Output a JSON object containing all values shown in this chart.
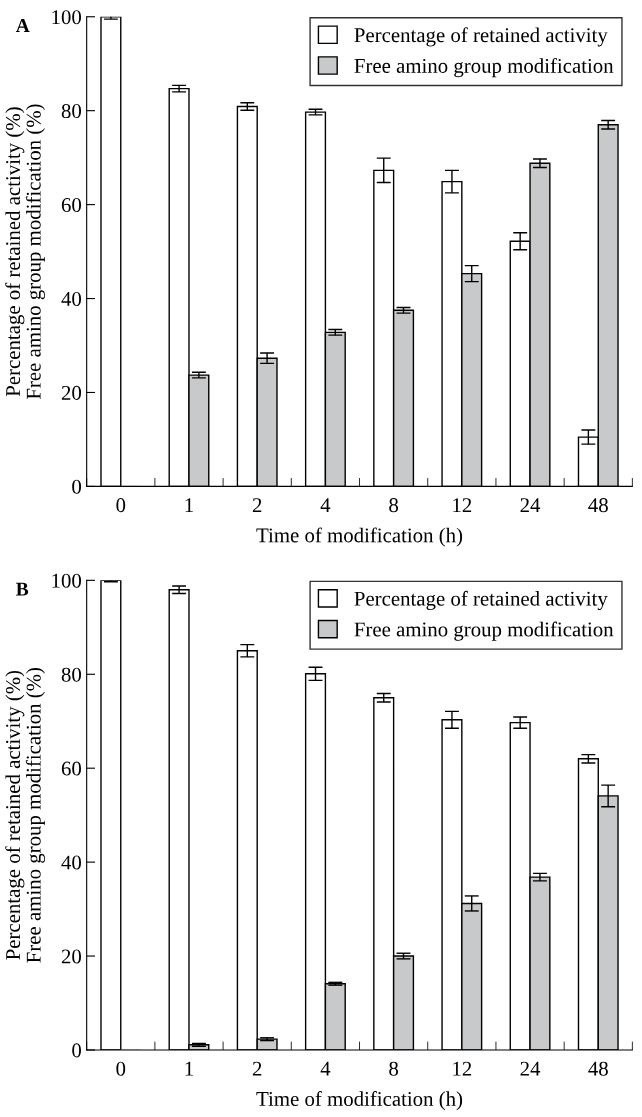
{
  "chart_data": [
    {
      "type": "bar",
      "title": "A",
      "xlabel": "Time of modification (h)",
      "ylabel": "Percentage of retained activity (%)\nFree amino group modification (%)",
      "categories": [
        "0",
        "1",
        "2",
        "4",
        "8",
        "12",
        "24",
        "48"
      ],
      "series": [
        {
          "name": "Percentage of retained activity",
          "color": "#ffffff",
          "values": [
            100,
            84.7,
            80.9,
            79.7,
            67.3,
            64.9,
            52.2,
            10.5
          ],
          "errors": [
            0.5,
            0.7,
            0.8,
            0.6,
            2.6,
            2.4,
            1.8,
            1.5
          ]
        },
        {
          "name": "Free amino group modification",
          "color": "#c8c9cb",
          "values": [
            0,
            23.7,
            27.3,
            32.8,
            37.5,
            45.3,
            68.8,
            77.0
          ],
          "errors": [
            null,
            0.6,
            1.1,
            0.6,
            0.6,
            1.7,
            0.9,
            0.9
          ]
        }
      ],
      "ylim": [
        0,
        100
      ],
      "yticks": [
        0,
        20,
        40,
        60,
        80,
        100
      ],
      "legend": "top right",
      "grid": false
    },
    {
      "type": "bar",
      "title": "B",
      "xlabel": "Time of modification (h)",
      "ylabel": "Percentage of retained activity (%)\nFree amino group modification (%)",
      "categories": [
        "0",
        "1",
        "2",
        "4",
        "8",
        "12",
        "24",
        "48"
      ],
      "series": [
        {
          "name": "Percentage of retained activity",
          "color": "#ffffff",
          "values": [
            100,
            98.0,
            85.0,
            80.1,
            75.0,
            70.3,
            69.7,
            62.0
          ],
          "errors": [
            0.3,
            0.8,
            1.3,
            1.4,
            0.9,
            1.8,
            1.2,
            0.9
          ]
        },
        {
          "name": "Free amino group modification",
          "color": "#c8c9cb",
          "values": [
            0,
            1.1,
            2.3,
            14.1,
            20.0,
            31.2,
            36.8,
            54.1
          ],
          "errors": [
            null,
            0.3,
            0.3,
            0.3,
            0.6,
            1.6,
            0.8,
            2.3
          ]
        }
      ],
      "ylim": [
        0,
        100
      ],
      "yticks": [
        0,
        20,
        40,
        60,
        80,
        100
      ],
      "legend": "top right",
      "grid": false
    }
  ]
}
